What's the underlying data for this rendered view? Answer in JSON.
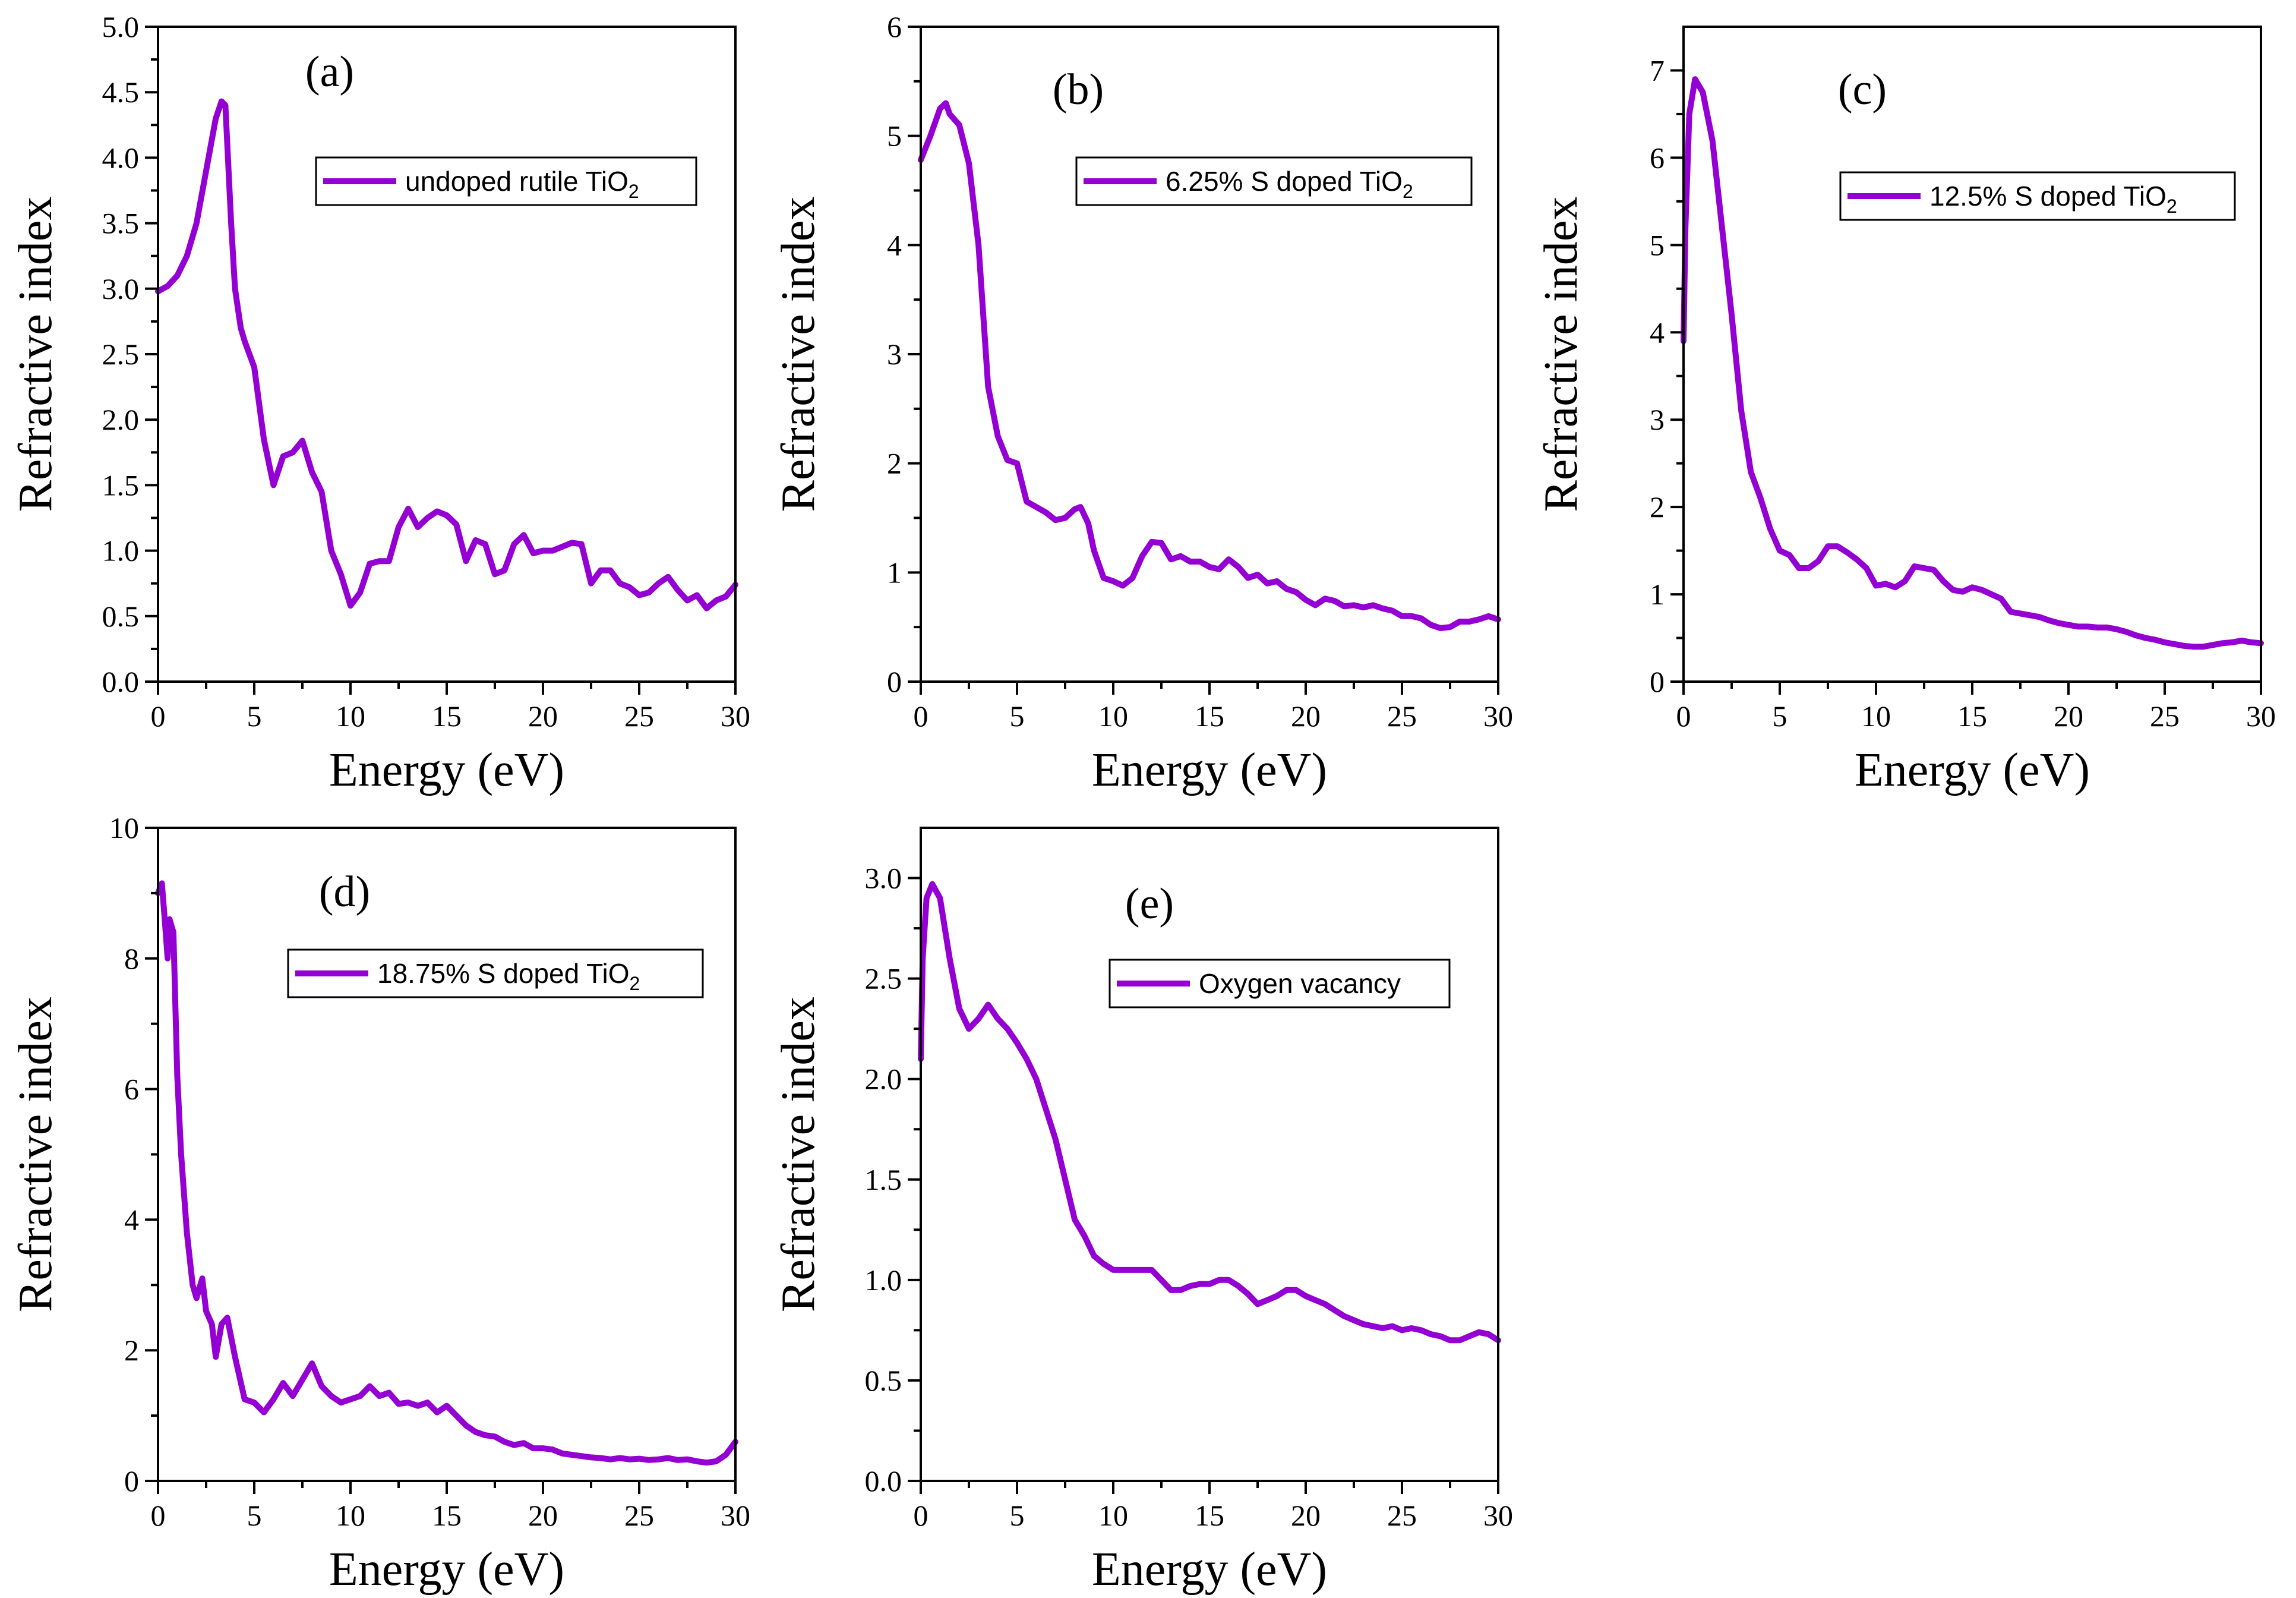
{
  "line_color": "#9400D3",
  "chart_data": [
    {
      "type": "line",
      "panel_label": "(a)",
      "legend": {
        "text": "undoped rutile TiO",
        "subscript": "2"
      },
      "xlabel": "Energy (eV)",
      "ylabel": "Refractive index",
      "xlim": [
        0,
        30
      ],
      "ylim": [
        0,
        5
      ],
      "xticks": [
        0,
        5,
        10,
        15,
        20,
        25,
        30
      ],
      "yticks": [
        "0.0",
        "0.5",
        "1.0",
        "1.5",
        "2.0",
        "2.5",
        "3.0",
        "3.5",
        "4.0",
        "4.5",
        "5.0"
      ],
      "series": [
        {
          "x": [
            0,
            0.5,
            1,
            1.5,
            2,
            2.5,
            3,
            3.3,
            3.5,
            3.8,
            4,
            4.3,
            4.5,
            5,
            5.5,
            6,
            6.5,
            7,
            7.5,
            8,
            8.5,
            9,
            9.5,
            10,
            10.5,
            11,
            11.5,
            12,
            12.5,
            13,
            13.5,
            14,
            14.5,
            15,
            15.5,
            16,
            16.5,
            17,
            17.5,
            18,
            18.5,
            19,
            19.5,
            20,
            20.5,
            21,
            21.5,
            22,
            22.5,
            23,
            23.5,
            24,
            24.5,
            25,
            25.5,
            26,
            26.5,
            27,
            27.5,
            28,
            28.5,
            29,
            29.5,
            30
          ],
          "y": [
            2.98,
            3.02,
            3.1,
            3.25,
            3.5,
            3.9,
            4.3,
            4.43,
            4.4,
            3.5,
            3.0,
            2.7,
            2.6,
            2.4,
            1.85,
            1.5,
            1.72,
            1.75,
            1.84,
            1.6,
            1.45,
            1.0,
            0.82,
            0.58,
            0.68,
            0.9,
            0.92,
            0.92,
            1.18,
            1.32,
            1.18,
            1.25,
            1.3,
            1.27,
            1.2,
            0.92,
            1.08,
            1.05,
            0.82,
            0.85,
            1.05,
            1.12,
            0.98,
            1.0,
            1.0,
            1.03,
            1.06,
            1.05,
            0.75,
            0.85,
            0.85,
            0.75,
            0.72,
            0.66,
            0.68,
            0.75,
            0.8,
            0.7,
            0.62,
            0.66,
            0.56,
            0.62,
            0.65,
            0.74
          ]
        }
      ]
    },
    {
      "type": "line",
      "panel_label": "(b)",
      "legend": {
        "text": "6.25% S doped TiO",
        "subscript": "2"
      },
      "xlabel": "Energy (eV)",
      "ylabel": "Refractive index",
      "xlim": [
        0,
        30
      ],
      "ylim": [
        0,
        6
      ],
      "xticks": [
        0,
        5,
        10,
        15,
        20,
        25,
        30
      ],
      "yticks": [
        "0",
        "1",
        "2",
        "3",
        "4",
        "5",
        "6"
      ],
      "series": [
        {
          "x": [
            0,
            0.5,
            1,
            1.3,
            1.5,
            2,
            2.5,
            3,
            3.5,
            4,
            4.5,
            5,
            5.5,
            6,
            6.5,
            7,
            7.5,
            8,
            8.3,
            8.7,
            9,
            9.5,
            10,
            10.5,
            11,
            11.5,
            12,
            12.5,
            13,
            13.5,
            14,
            14.5,
            15,
            15.5,
            16,
            16.5,
            17,
            17.5,
            18,
            18.5,
            19,
            19.5,
            20,
            20.5,
            21,
            21.5,
            22,
            22.5,
            23,
            23.5,
            24,
            24.5,
            25,
            25.5,
            26,
            26.5,
            27,
            27.5,
            28,
            28.5,
            29,
            29.5,
            30
          ],
          "y": [
            4.78,
            5.0,
            5.25,
            5.3,
            5.2,
            5.1,
            4.75,
            4.0,
            2.7,
            2.25,
            2.03,
            2.0,
            1.65,
            1.6,
            1.55,
            1.48,
            1.5,
            1.58,
            1.6,
            1.45,
            1.2,
            0.95,
            0.92,
            0.88,
            0.95,
            1.15,
            1.28,
            1.27,
            1.12,
            1.15,
            1.1,
            1.1,
            1.05,
            1.03,
            1.12,
            1.05,
            0.95,
            0.98,
            0.9,
            0.92,
            0.85,
            0.82,
            0.75,
            0.7,
            0.76,
            0.74,
            0.69,
            0.7,
            0.68,
            0.7,
            0.67,
            0.65,
            0.6,
            0.6,
            0.58,
            0.52,
            0.49,
            0.5,
            0.55,
            0.55,
            0.57,
            0.6,
            0.57
          ]
        }
      ]
    },
    {
      "type": "line",
      "panel_label": "(c)",
      "legend": {
        "text": "12.5% S doped TiO",
        "subscript": "2"
      },
      "xlabel": "Energy (eV)",
      "ylabel": "Refractive index",
      "xlim": [
        0,
        30
      ],
      "ylim": [
        0,
        7.5
      ],
      "xticks": [
        0,
        5,
        10,
        15,
        20,
        25,
        30
      ],
      "yticks": [
        "0",
        "1",
        "2",
        "3",
        "4",
        "5",
        "6",
        "7"
      ],
      "series": [
        {
          "x": [
            0,
            0.1,
            0.3,
            0.6,
            1,
            1.5,
            2,
            2.5,
            3,
            3.5,
            4,
            4.5,
            5,
            5.5,
            6,
            6.5,
            7,
            7.5,
            8,
            8.5,
            9,
            9.5,
            10,
            10.5,
            11,
            11.5,
            12,
            12.5,
            13,
            13.5,
            14,
            14.5,
            15,
            15.5,
            16,
            16.5,
            17,
            17.5,
            18,
            18.5,
            19,
            19.5,
            20,
            20.5,
            21,
            21.5,
            22,
            22.5,
            23,
            23.5,
            24,
            24.5,
            25,
            25.5,
            26,
            26.5,
            27,
            27.5,
            28,
            28.5,
            29,
            29.5,
            30
          ],
          "y": [
            3.9,
            5.2,
            6.5,
            6.9,
            6.75,
            6.2,
            5.2,
            4.2,
            3.1,
            2.4,
            2.1,
            1.75,
            1.5,
            1.45,
            1.3,
            1.3,
            1.38,
            1.55,
            1.55,
            1.48,
            1.4,
            1.3,
            1.1,
            1.12,
            1.08,
            1.15,
            1.32,
            1.3,
            1.28,
            1.15,
            1.05,
            1.03,
            1.08,
            1.05,
            1.0,
            0.95,
            0.8,
            0.78,
            0.76,
            0.74,
            0.7,
            0.67,
            0.65,
            0.63,
            0.63,
            0.62,
            0.62,
            0.6,
            0.57,
            0.53,
            0.5,
            0.48,
            0.45,
            0.43,
            0.41,
            0.4,
            0.4,
            0.42,
            0.44,
            0.45,
            0.47,
            0.45,
            0.44
          ]
        }
      ]
    },
    {
      "type": "line",
      "panel_label": "(d)",
      "legend": {
        "text": "18.75% S doped TiO",
        "subscript": "2"
      },
      "xlabel": "Energy (eV)",
      "ylabel": "Refractive index",
      "xlim": [
        0,
        30
      ],
      "ylim": [
        0,
        10
      ],
      "xticks": [
        0,
        5,
        10,
        15,
        20,
        25,
        30
      ],
      "yticks": [
        "0",
        "2",
        "4",
        "6",
        "8",
        "10"
      ],
      "series": [
        {
          "x": [
            0,
            0.2,
            0.35,
            0.5,
            0.6,
            0.8,
            1,
            1.2,
            1.5,
            1.8,
            2,
            2.3,
            2.5,
            2.8,
            3,
            3.3,
            3.6,
            4,
            4.5,
            5,
            5.5,
            6,
            6.5,
            7,
            7.5,
            8,
            8.5,
            9,
            9.5,
            10,
            10.5,
            11,
            11.5,
            12,
            12.5,
            13,
            13.5,
            14,
            14.5,
            15,
            15.5,
            16,
            16.5,
            17,
            17.5,
            18,
            18.5,
            19,
            19.5,
            20,
            20.5,
            21,
            21.5,
            22,
            22.5,
            23,
            23.5,
            24,
            24.5,
            25,
            25.5,
            26,
            26.5,
            27,
            27.5,
            28,
            28.5,
            29,
            29.5,
            30
          ],
          "y": [
            9.0,
            9.15,
            8.6,
            8.0,
            8.6,
            8.4,
            6.2,
            5.0,
            3.8,
            3.0,
            2.8,
            3.1,
            2.6,
            2.4,
            1.9,
            2.4,
            2.5,
            1.9,
            1.25,
            1.2,
            1.05,
            1.25,
            1.5,
            1.3,
            1.55,
            1.8,
            1.45,
            1.3,
            1.2,
            1.25,
            1.3,
            1.45,
            1.3,
            1.35,
            1.18,
            1.2,
            1.15,
            1.2,
            1.05,
            1.15,
            1.0,
            0.85,
            0.75,
            0.7,
            0.68,
            0.6,
            0.55,
            0.58,
            0.5,
            0.5,
            0.48,
            0.42,
            0.4,
            0.38,
            0.36,
            0.35,
            0.33,
            0.35,
            0.33,
            0.34,
            0.32,
            0.33,
            0.35,
            0.32,
            0.33,
            0.3,
            0.28,
            0.3,
            0.4,
            0.6
          ]
        }
      ]
    },
    {
      "type": "line",
      "panel_label": "(e)",
      "legend": {
        "text": "Oxygen vacancy",
        "subscript": ""
      },
      "xlabel": "Energy (eV)",
      "ylabel": "Refractive index",
      "xlim": [
        0,
        30
      ],
      "ylim": [
        0,
        3.25
      ],
      "xticks": [
        0,
        5,
        10,
        15,
        20,
        25,
        30
      ],
      "yticks": [
        "0.0",
        "0.5",
        "1.0",
        "1.5",
        "2.0",
        "2.5",
        "3.0"
      ],
      "series": [
        {
          "x": [
            0,
            0.1,
            0.3,
            0.6,
            1,
            1.5,
            2,
            2.5,
            3,
            3.5,
            4,
            4.5,
            5,
            5.5,
            6,
            6.5,
            7,
            7.5,
            8,
            8.5,
            9,
            9.5,
            10,
            10.5,
            11,
            11.5,
            12,
            12.5,
            13,
            13.5,
            14,
            14.5,
            15,
            15.5,
            16,
            16.5,
            17,
            17.5,
            18,
            18.5,
            19,
            19.5,
            20,
            20.5,
            21,
            21.5,
            22,
            22.5,
            23,
            23.5,
            24,
            24.5,
            25,
            25.5,
            26,
            26.5,
            27,
            27.5,
            28,
            28.5,
            29,
            29.5,
            30
          ],
          "y": [
            2.1,
            2.6,
            2.9,
            2.97,
            2.9,
            2.6,
            2.35,
            2.25,
            2.3,
            2.37,
            2.3,
            2.25,
            2.18,
            2.1,
            2.0,
            1.85,
            1.7,
            1.5,
            1.3,
            1.22,
            1.12,
            1.08,
            1.05,
            1.05,
            1.05,
            1.05,
            1.05,
            1.0,
            0.95,
            0.95,
            0.97,
            0.98,
            0.98,
            1.0,
            1.0,
            0.97,
            0.93,
            0.88,
            0.9,
            0.92,
            0.95,
            0.95,
            0.92,
            0.9,
            0.88,
            0.85,
            0.82,
            0.8,
            0.78,
            0.77,
            0.76,
            0.77,
            0.75,
            0.76,
            0.75,
            0.73,
            0.72,
            0.7,
            0.7,
            0.72,
            0.74,
            0.73,
            0.7
          ]
        }
      ]
    }
  ]
}
